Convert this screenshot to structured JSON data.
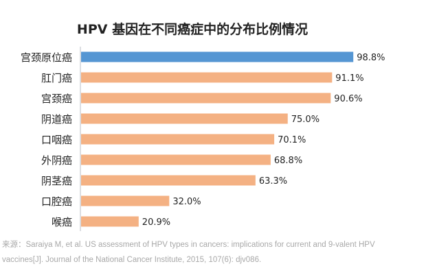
{
  "chart_data": {
    "type": "bar",
    "orientation": "horizontal",
    "title": "HPV 基因在不同癌症中的分布比例情况",
    "categories": [
      "宫颈原位癌",
      "肛门癌",
      "宫颈癌",
      "阴道癌",
      "口咽癌",
      "外阴癌",
      "阴茎癌",
      "口腔癌",
      "喉癌"
    ],
    "values": [
      98.8,
      91.1,
      90.6,
      75.0,
      70.1,
      68.8,
      63.3,
      32.0,
      20.9
    ],
    "value_labels": [
      "98.8%",
      "91.1%",
      "90.6%",
      "75.0%",
      "70.1%",
      "68.8%",
      "63.3%",
      "32.0%",
      "20.9%"
    ],
    "xlim": [
      0,
      100
    ],
    "grid": false,
    "colors": {
      "highlight": "#5596d3",
      "default": "#f4b183"
    },
    "highlight_index": 0
  },
  "source": {
    "line1": "来源：Saraiya M, et al. US assessment of HPV types in cancers: implications for current and 9-valent HPV",
    "line2": "vaccines[J]. Journal of the National Cancer Institute, 2015, 107(6): djv086."
  }
}
